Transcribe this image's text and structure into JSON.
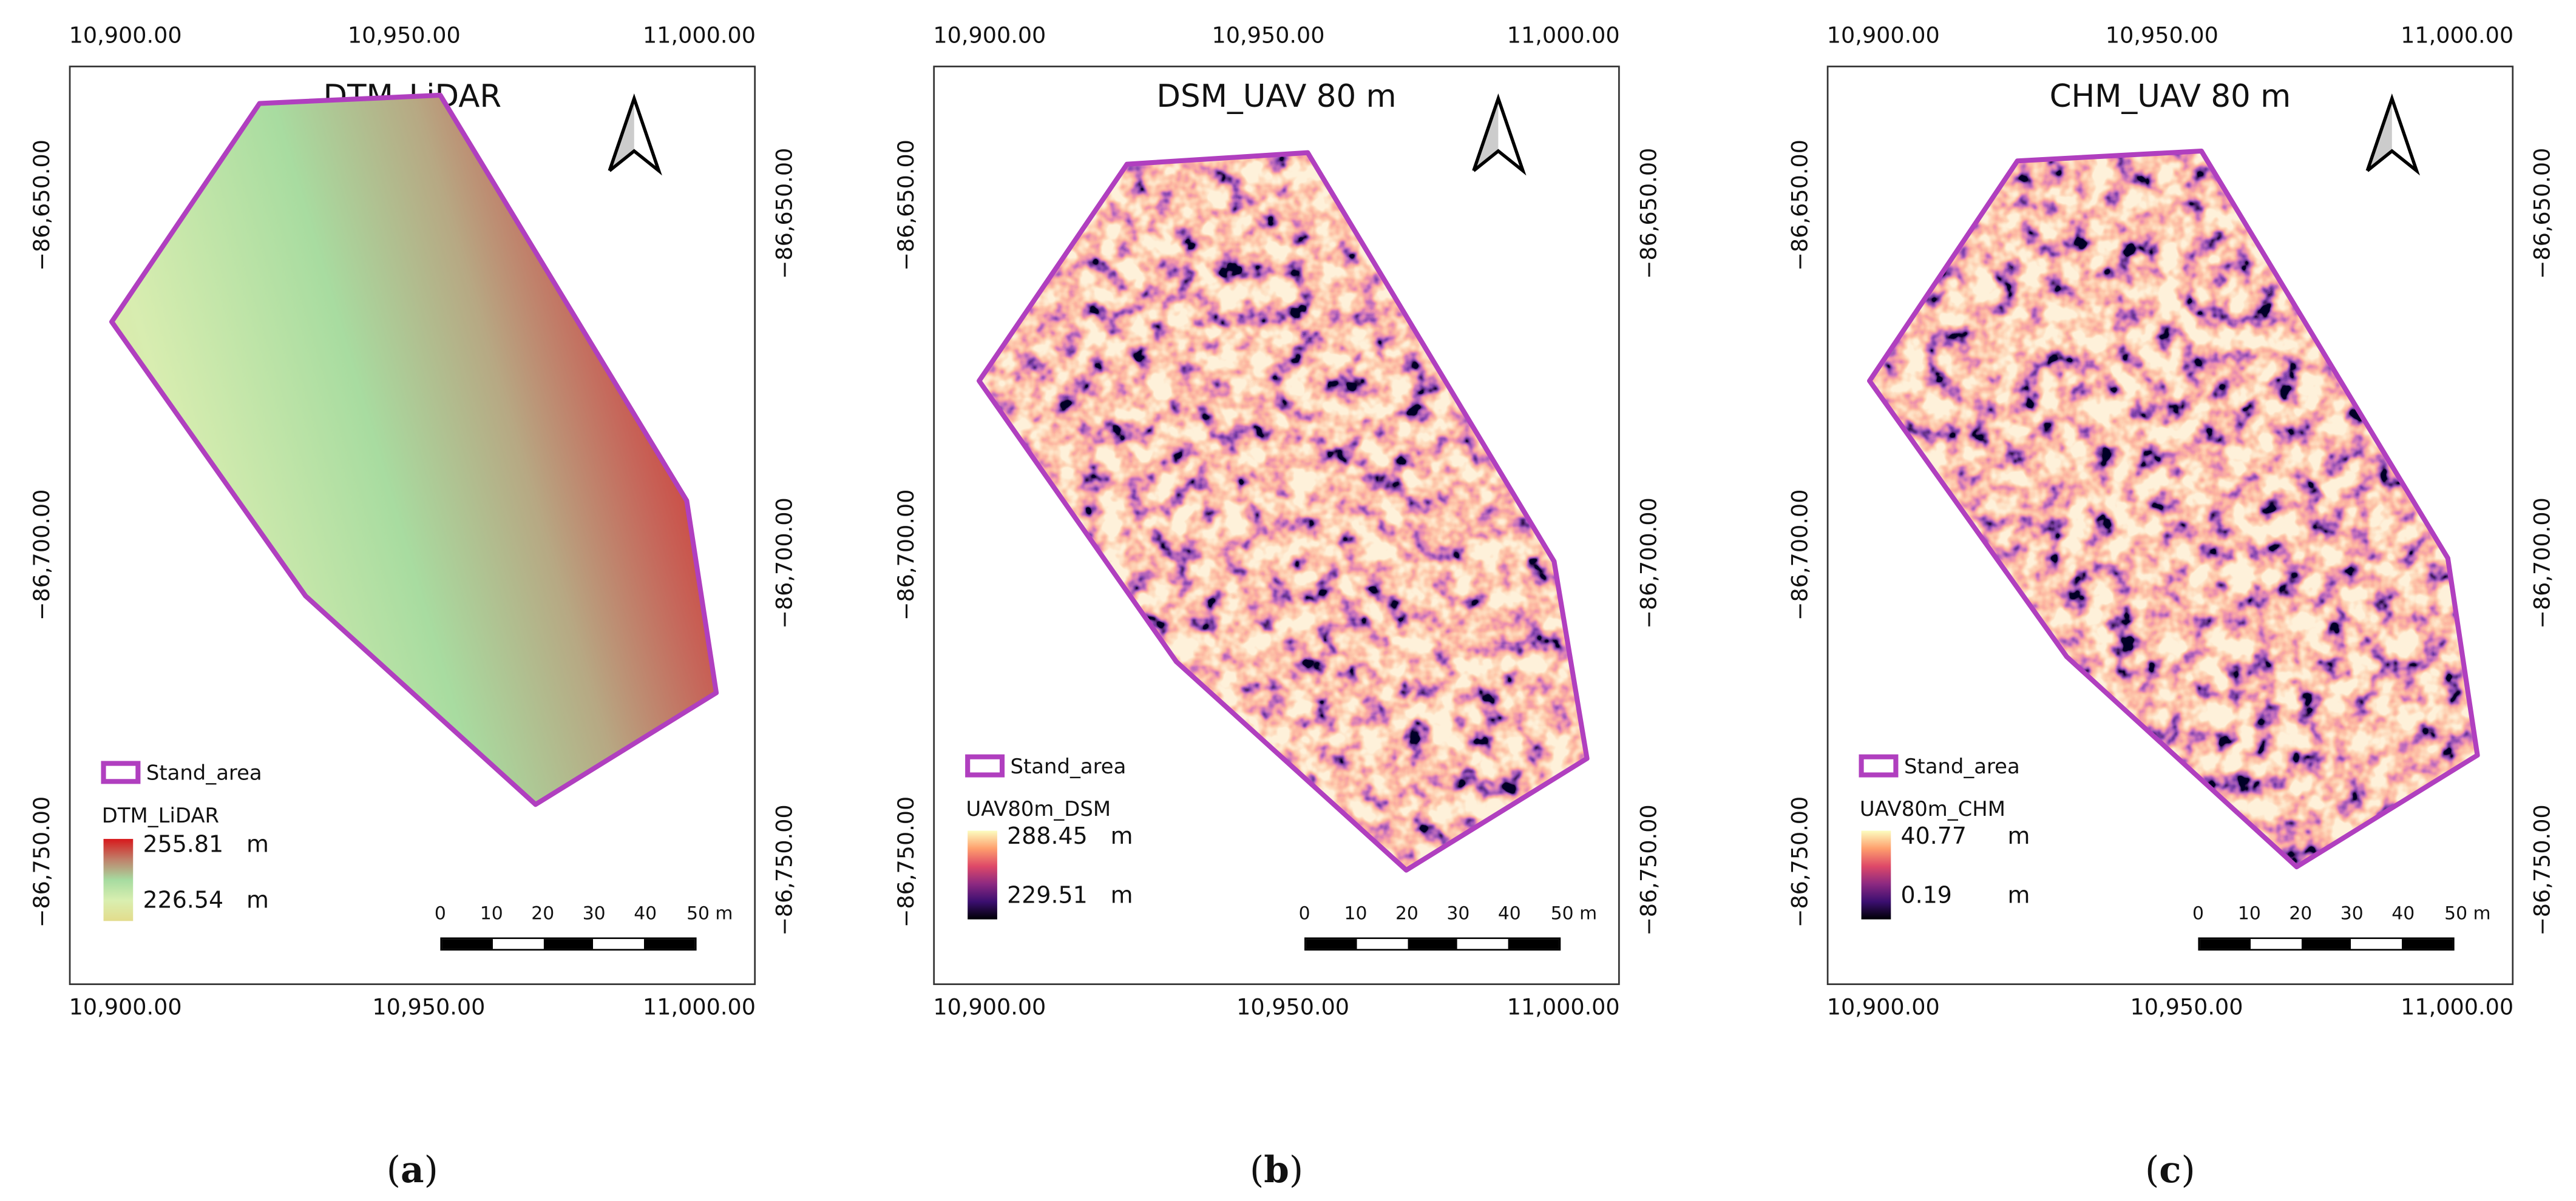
{
  "panels": [
    {
      "id": "a",
      "title": "DTM_LiDAR",
      "x_ticks": [
        "10,900.00",
        "10,950.00",
        "11,000.00"
      ],
      "y_ticks": [
        "−86,650.00",
        "−86,700.00",
        "−86,750.00"
      ],
      "legend_polygon": "Stand_area",
      "legend_raster": "DTM_LiDAR",
      "legend_max": "255.81",
      "legend_min": "226.54",
      "legend_unit": "m",
      "ramp": [
        "#d7191c",
        "#c0806a",
        "#a6dba0",
        "#d9efb0",
        "#e3dc8c"
      ],
      "scalebar": [
        "0",
        "10",
        "20",
        "30",
        "40",
        "50 m"
      ],
      "caption_letter": "a"
    },
    {
      "id": "b",
      "title": "DSM_UAV 80 m",
      "x_ticks": [
        "10,900.00",
        "10,950.00",
        "11,000.00"
      ],
      "y_ticks": [
        "−86,650.00",
        "−86,700.00",
        "−86,750.00"
      ],
      "legend_polygon": "Stand_area",
      "legend_raster": "UAV80m_DSM",
      "legend_max": "288.45",
      "legend_min": "229.51",
      "legend_unit": "m",
      "ramp": [
        "#fcfdbf",
        "#fe9f6d",
        "#de4968",
        "#8c2981",
        "#3b0f70",
        "#000004"
      ],
      "scalebar": [
        "0",
        "10",
        "20",
        "30",
        "40",
        "50 m"
      ],
      "caption_letter": "b"
    },
    {
      "id": "c",
      "title": "CHM_UAV 80 m",
      "x_ticks": [
        "10,900.00",
        "10,950.00",
        "11,000.00"
      ],
      "y_ticks": [
        "−86,650.00",
        "−86,700.00",
        "−86,750.00"
      ],
      "legend_polygon": "Stand_area",
      "legend_raster": "UAV80m_CHM",
      "legend_max": "40.77",
      "legend_min": "0.19",
      "legend_unit": "m",
      "ramp": [
        "#fcfdbf",
        "#fe9f6d",
        "#de4968",
        "#8c2981",
        "#3b0f70",
        "#000004"
      ],
      "scalebar": [
        "0",
        "10",
        "20",
        "30",
        "40",
        "50 m"
      ],
      "caption_letter": "c"
    }
  ],
  "colors": {
    "stand_area_outline": "#b03fbf"
  }
}
